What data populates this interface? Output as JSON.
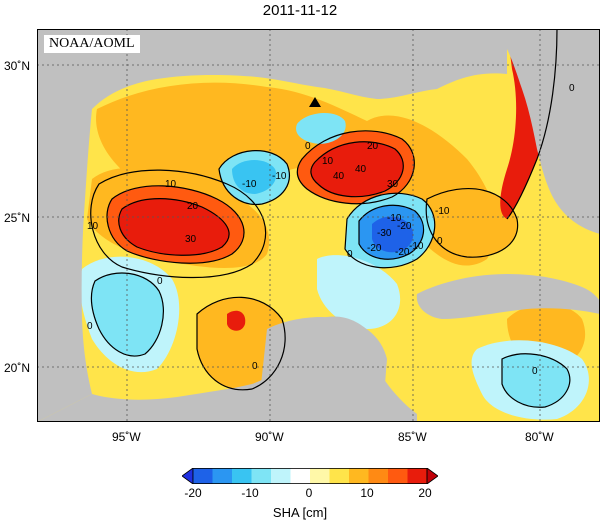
{
  "title": "2011-11-12",
  "credit": "NOAA/AOML",
  "axes": {
    "lon_labels": [
      "95˚W",
      "90˚W",
      "85˚W",
      "80˚W"
    ],
    "lat_labels": [
      "30˚N",
      "25˚N",
      "20˚N"
    ]
  },
  "contour_labels": [
    "-10",
    "-10",
    "-20",
    "-30",
    "-20",
    "-10",
    "-10",
    "0",
    "0",
    "0",
    "0",
    "0",
    "0",
    "0",
    "10",
    "10",
    "10",
    "20",
    "20",
    "30",
    "30",
    "40",
    "40",
    "0",
    "-10",
    "-20"
  ],
  "colorbar": {
    "title": "SHA [cm]",
    "ticks": [
      "-20",
      "-10",
      "0",
      "10",
      "20"
    ],
    "range": [
      -20,
      20
    ],
    "colors": [
      "#1f2fe0",
      "#1e62e8",
      "#2b96f2",
      "#39c4f2",
      "#7ee4f5",
      "#bff4fb",
      "#ffffff",
      "#fff8a8",
      "#ffe44a",
      "#ffb820",
      "#ff8a14",
      "#ff5a10",
      "#e81c0c",
      "#c00008"
    ]
  },
  "land_color": "#c0c0c0",
  "marker": "triangle-marker"
}
